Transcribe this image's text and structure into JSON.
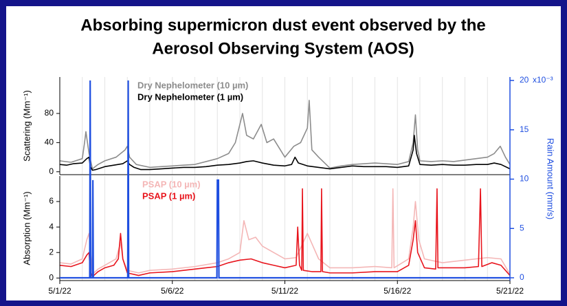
{
  "chart_data": {
    "type": "line",
    "title": [
      "Absorbing supermicron dust event observed by the",
      "Aerosol Observing System (AOS)"
    ],
    "xlim": [
      1,
      21
    ],
    "xticks": [
      {
        "value": 1,
        "label": "5/1/22"
      },
      {
        "value": 6,
        "label": "5/6/22"
      },
      {
        "value": 11,
        "label": "5/11/22"
      },
      {
        "value": 16,
        "label": "5/16/22"
      },
      {
        "value": 21,
        "label": "5/21/22"
      }
    ],
    "x_grid": [
      2,
      3,
      4,
      5,
      7,
      8,
      9,
      10,
      12,
      13,
      14,
      15,
      17,
      18,
      19,
      20
    ],
    "panels": [
      {
        "ylabel": "Scattering (Mm⁻¹)",
        "ylim": [
          -4,
          130
        ],
        "yticks": [
          0,
          40,
          80
        ],
        "series": [
          {
            "name": "Dry Nephelometer (10 µm)",
            "color": "#8c8c8c",
            "x": [
              1,
              1.5,
              2.0,
              2.1,
              2.16,
              2.3,
              2.45,
              2.7,
              3.0,
              3.5,
              3.9,
              4.0,
              4.1,
              4.4,
              5.0,
              5.5,
              6.0,
              6.5,
              7.0,
              7.5,
              8.0,
              8.5,
              8.8,
              9.12,
              9.3,
              9.6,
              9.95,
              10.2,
              10.5,
              10.8,
              11.0,
              11.4,
              11.7,
              12.0,
              12.08,
              12.2,
              12.5,
              13.0,
              13.5,
              14.0,
              15.0,
              16.0,
              16.5,
              16.7,
              16.8,
              16.9,
              17.0,
              17.5,
              18.0,
              18.5,
              19.0,
              19.5,
              20.0,
              20.3,
              20.57,
              20.8,
              21.0
            ],
            "values": [
              15,
              13,
              18,
              40,
              55,
              25,
              4,
              10,
              15,
              20,
              30,
              35,
              20,
              10,
              6,
              7,
              8,
              9,
              10,
              14,
              18,
              25,
              40,
              80,
              50,
              45,
              65,
              40,
              45,
              30,
              20,
              35,
              40,
              60,
              98,
              30,
              20,
              5,
              8,
              10,
              12,
              10,
              14,
              40,
              78,
              30,
              15,
              14,
              15,
              14,
              16,
              18,
              20,
              25,
              35,
              20,
              10
            ]
          },
          {
            "name": "Dry Nephelometer (1 µm)",
            "color": "#000000",
            "x": [
              1,
              1.3,
              1.6,
              2.0,
              2.2,
              2.3,
              2.35,
              2.45,
              2.6,
              3.0,
              3.4,
              3.8,
              4.0,
              4.1,
              4.3,
              4.6,
              5.0,
              5.5,
              6.0,
              6.5,
              7.0,
              7.5,
              8.0,
              8.5,
              9.0,
              9.3,
              9.6,
              10.0,
              10.5,
              11.0,
              11.3,
              11.45,
              11.6,
              12.0,
              12.5,
              13.0,
              13.5,
              14.0,
              14.5,
              15.0,
              15.5,
              16.0,
              16.5,
              16.7,
              16.75,
              16.85,
              17.0,
              17.5,
              18.0,
              18.5,
              19.0,
              19.5,
              20.0,
              20.3,
              20.6,
              21.0
            ],
            "values": [
              10,
              9,
              11,
              12,
              18,
              20,
              8,
              2,
              3,
              7,
              9,
              11,
              15,
              10,
              6,
              3,
              3,
              4,
              5,
              6,
              6,
              7,
              9,
              10,
              12,
              14,
              15,
              12,
              9,
              8,
              10,
              20,
              12,
              8,
              6,
              4,
              6,
              8,
              7,
              7,
              7,
              6,
              8,
              30,
              50,
              25,
              10,
              9,
              10,
              9,
              9,
              10,
              10,
              12,
              10,
              4
            ]
          }
        ]
      },
      {
        "ylabel": "Absorption (Mm⁻¹)",
        "ylim": [
          -0.2,
          8
        ],
        "yticks": [
          0,
          2,
          4,
          6
        ],
        "series": [
          {
            "name": "PSAP (10 µm)",
            "color": "#f4b6b6",
            "x": [
              1,
              1.5,
              2.0,
              2.2,
              2.3,
              2.45,
              2.7,
              3.0,
              3.5,
              3.7,
              3.8,
              4.0,
              4.5,
              5.0,
              6.0,
              7.0,
              8.0,
              8.5,
              9.0,
              9.18,
              9.4,
              9.7,
              10.0,
              10.5,
              11.0,
              11.5,
              12.0,
              12.5,
              13.0,
              14.0,
              15.0,
              15.75,
              15.8,
              15.85,
              16.5,
              16.7,
              16.8,
              16.95,
              17.2,
              18.0,
              19.0,
              20.0,
              20.6,
              21.0
            ],
            "values": [
              1.2,
              1.1,
              1.5,
              3.0,
              3.5,
              0.3,
              0.7,
              1.0,
              1.5,
              2.8,
              1.5,
              0.6,
              0.4,
              0.6,
              0.7,
              0.9,
              1.2,
              1.5,
              2.0,
              4.5,
              3.0,
              3.2,
              2.5,
              2.0,
              1.5,
              1.6,
              3.5,
              1.5,
              0.8,
              0.8,
              0.9,
              0.8,
              7.0,
              0.8,
              1.5,
              4.0,
              6.0,
              3.0,
              1.5,
              1.2,
              1.4,
              1.6,
              1.5,
              0.3
            ]
          },
          {
            "name": "PSAP (1 µm)",
            "color": "#e8141c",
            "x": [
              1,
              1.5,
              2.0,
              2.2,
              2.3,
              2.35,
              2.45,
              2.7,
              3.0,
              3.4,
              3.6,
              3.7,
              3.8,
              4.0,
              4.5,
              5.0,
              6.0,
              7.0,
              7.5,
              8.0,
              8.5,
              9.0,
              9.5,
              10.0,
              10.5,
              11.0,
              11.5,
              11.57,
              11.65,
              11.75,
              11.78,
              11.82,
              12.2,
              12.6,
              12.63,
              12.67,
              13.0,
              14.0,
              15.0,
              16.0,
              16.5,
              16.7,
              16.8,
              16.9,
              17.2,
              17.7,
              17.76,
              17.8,
              18.5,
              19.0,
              19.6,
              19.69,
              19.75,
              20.2,
              20.6,
              21.0
            ],
            "values": [
              1.0,
              0.9,
              1.2,
              1.8,
              2.0,
              0.5,
              0.1,
              0.5,
              0.8,
              1.0,
              1.5,
              3.5,
              1.5,
              0.4,
              0.2,
              0.4,
              0.5,
              0.7,
              0.8,
              0.9,
              1.2,
              1.4,
              1.5,
              1.2,
              1.0,
              0.8,
              1.0,
              4.0,
              1.0,
              0.6,
              7.0,
              0.6,
              0.5,
              0.5,
              7.0,
              0.5,
              0.4,
              0.4,
              0.5,
              0.5,
              1.0,
              3.0,
              4.5,
              2.0,
              0.8,
              0.7,
              7.0,
              0.8,
              0.8,
              0.8,
              0.9,
              7.0,
              0.9,
              1.2,
              1.0,
              0.2
            ]
          }
        ]
      }
    ],
    "y2label": "Rain Amount (mm/s)",
    "y2lim": [
      -0.00028,
      0.02035
    ],
    "y2ticks": [
      0,
      {
        "value": 0.005,
        "label": "5"
      },
      {
        "value": 0.01,
        "label": "10"
      },
      {
        "value": 0.015,
        "label": "15"
      },
      {
        "value": 0.02,
        "label": "20"
      }
    ],
    "y2_multiplier": "x10⁻³",
    "rain": {
      "color": "#1f4fe0",
      "axis": "y2",
      "x": [
        1,
        2.33,
        2.35,
        2.37,
        2.45,
        2.47,
        2.49,
        4.02,
        4.04,
        4.06,
        7.98,
        8.0,
        8.05,
        8.07,
        21
      ],
      "values": [
        0,
        0,
        0.02,
        0,
        0,
        0.0099,
        0,
        0,
        0.02,
        0,
        0,
        0.0099,
        0.0099,
        0,
        0
      ]
    }
  }
}
